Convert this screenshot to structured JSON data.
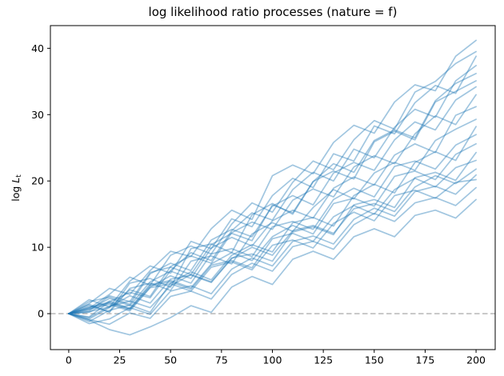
{
  "chart_data": {
    "type": "line",
    "title": "log likelihood ratio processes (nature = f)",
    "xlabel": "",
    "ylabel": "log L_t",
    "ylabel_parts": {
      "prefix": "log",
      "variable": "L",
      "subscript": "t"
    },
    "x_ticks": [
      0,
      25,
      50,
      75,
      100,
      125,
      150,
      175,
      200
    ],
    "y_ticks": [
      0,
      10,
      20,
      30,
      40
    ],
    "xlim": [
      -9,
      209.4
    ],
    "ylim": [
      -5.42,
      43.42
    ],
    "grid": false,
    "legend": false,
    "line_color": "#1f77b4",
    "line_alpha": 0.42,
    "reference_line": {
      "y": 0,
      "style": "dashed",
      "color": "#b0b0b0"
    },
    "x": [
      0,
      10,
      20,
      30,
      40,
      50,
      60,
      70,
      80,
      90,
      100,
      110,
      120,
      130,
      140,
      150,
      160,
      170,
      180,
      190,
      200
    ],
    "series": [
      {
        "name": "llr-path-1",
        "values": [
          0,
          1.5,
          3.8,
          2.9,
          6.5,
          9.4,
          8.6,
          12.8,
          15.6,
          14.2,
          20.8,
          22.4,
          21.1,
          25.8,
          28.4,
          27.2,
          31.9,
          34.5,
          33.6,
          38.8,
          41.2
        ]
      },
      {
        "name": "llr-path-2",
        "values": [
          0,
          0.8,
          2.9,
          5.5,
          4.3,
          8.8,
          10.2,
          9.0,
          13.5,
          16.7,
          15.3,
          19.8,
          23.0,
          21.7,
          26.2,
          29.1,
          27.8,
          33.4,
          35.0,
          37.7,
          39.5
        ]
      },
      {
        "name": "llr-path-3",
        "values": [
          0,
          2.1,
          1.0,
          4.9,
          7.2,
          6.1,
          10.9,
          9.8,
          14.3,
          13.1,
          17.8,
          20.4,
          19.0,
          24.1,
          23.0,
          28.3,
          27.1,
          31.8,
          34.4,
          33.2,
          38.8
        ]
      },
      {
        "name": "llr-path-4",
        "values": [
          0,
          -0.5,
          1.8,
          3.2,
          2.4,
          6.5,
          9.2,
          8.0,
          12.5,
          15.2,
          14.1,
          18.7,
          21.3,
          20.0,
          24.8,
          23.5,
          28.1,
          30.8,
          29.6,
          35.1,
          37.4
        ]
      },
      {
        "name": "llr-path-5",
        "values": [
          0,
          1.2,
          0.3,
          4.6,
          5.3,
          4.0,
          9.8,
          10.5,
          9.2,
          14.9,
          16.6,
          15.0,
          19.9,
          22.6,
          21.3,
          26.1,
          27.7,
          26.5,
          32.1,
          34.7,
          36.2
        ]
      },
      {
        "name": "llr-path-6",
        "values": [
          0,
          0.4,
          2.7,
          1.8,
          6.2,
          7.0,
          5.9,
          10.4,
          12.1,
          11.0,
          16.4,
          15.2,
          19.9,
          21.5,
          20.3,
          25.9,
          27.5,
          26.2,
          31.9,
          33.5,
          35.1
        ]
      },
      {
        "name": "llr-path-7",
        "values": [
          0,
          1.8,
          2.5,
          1.4,
          6.0,
          7.6,
          6.5,
          11.1,
          12.7,
          11.6,
          16.2,
          17.8,
          16.4,
          21.2,
          22.8,
          21.6,
          26.2,
          28.9,
          27.7,
          32.2,
          34.2
        ]
      },
      {
        "name": "llr-path-8",
        "values": [
          0,
          -0.8,
          0.9,
          3.6,
          2.6,
          7.1,
          8.7,
          7.6,
          12.2,
          13.8,
          12.7,
          17.1,
          18.8,
          17.6,
          22.1,
          23.8,
          22.6,
          27.1,
          29.8,
          28.5,
          33.0
        ]
      },
      {
        "name": "llr-path-9",
        "values": [
          0,
          0.6,
          2.3,
          1.2,
          4.8,
          6.4,
          5.3,
          9.9,
          11.5,
          10.2,
          14.0,
          15.6,
          14.4,
          18.9,
          20.6,
          19.4,
          23.9,
          25.6,
          24.3,
          29.9,
          31.2
        ]
      },
      {
        "name": "llr-path-10",
        "values": [
          0,
          1.4,
          0.2,
          3.8,
          4.6,
          3.5,
          7.9,
          8.7,
          7.5,
          12.0,
          13.7,
          12.4,
          16.0,
          18.7,
          17.3,
          21.2,
          22.8,
          21.6,
          26.1,
          27.8,
          29.3
        ]
      },
      {
        "name": "llr-path-11",
        "values": [
          0,
          -1.2,
          0.5,
          1.3,
          0.2,
          4.6,
          6.3,
          5.1,
          8.8,
          10.4,
          9.3,
          13.7,
          14.5,
          13.2,
          17.8,
          19.5,
          18.2,
          22.8,
          24.4,
          23.1,
          28.2
        ]
      },
      {
        "name": "llr-path-12",
        "values": [
          0,
          0.9,
          1.6,
          0.6,
          4.0,
          5.7,
          4.6,
          9.0,
          9.8,
          8.6,
          13.1,
          13.9,
          12.7,
          17.2,
          18.9,
          17.6,
          22.2,
          23.0,
          21.8,
          25.4,
          27.0
        ]
      },
      {
        "name": "llr-path-13",
        "values": [
          0,
          0.2,
          1.9,
          0.8,
          4.4,
          5.0,
          3.9,
          7.5,
          9.2,
          8.0,
          11.6,
          13.3,
          12.0,
          16.6,
          17.4,
          16.2,
          20.7,
          21.5,
          20.2,
          24.0,
          25.6
        ]
      },
      {
        "name": "llr-path-14",
        "values": [
          0,
          -0.6,
          1.1,
          1.9,
          0.9,
          4.2,
          5.9,
          4.8,
          8.4,
          9.0,
          7.9,
          12.3,
          13.1,
          11.9,
          16.4,
          17.2,
          16.0,
          20.5,
          21.3,
          20.1,
          24.3
        ]
      },
      {
        "name": "llr-path-15",
        "values": [
          0,
          1.0,
          1.7,
          0.7,
          4.2,
          4.8,
          3.7,
          7.3,
          8.0,
          6.9,
          11.3,
          12.1,
          10.9,
          14.6,
          16.3,
          15.0,
          18.7,
          20.4,
          19.1,
          22.0,
          23.1
        ]
      },
      {
        "name": "llr-path-16",
        "values": [
          0,
          0.3,
          1.0,
          2.7,
          1.6,
          5.2,
          5.8,
          4.7,
          8.3,
          10.0,
          8.8,
          12.5,
          13.3,
          12.1,
          15.8,
          16.6,
          15.4,
          19.1,
          20.8,
          19.6,
          21.8
        ]
      },
      {
        "name": "llr-path-17",
        "values": [
          0,
          -1.5,
          -0.8,
          0.9,
          -0.1,
          3.4,
          4.2,
          3.0,
          6.7,
          8.4,
          7.2,
          10.9,
          11.7,
          10.5,
          14.2,
          15.9,
          14.7,
          18.4,
          19.2,
          18.0,
          20.9
        ]
      },
      {
        "name": "llr-path-18",
        "values": [
          0,
          0.7,
          1.4,
          0.4,
          3.9,
          4.5,
          3.4,
          7.0,
          7.8,
          6.6,
          10.3,
          11.1,
          9.9,
          13.6,
          15.3,
          14.0,
          17.8,
          18.6,
          17.4,
          19.8,
          20.2
        ]
      },
      {
        "name": "llr-path-19",
        "values": [
          0,
          -0.9,
          -1.6,
          0.1,
          -0.7,
          2.6,
          3.4,
          2.2,
          5.9,
          7.6,
          6.4,
          10.1,
          10.9,
          9.7,
          13.4,
          15.1,
          13.9,
          16.7,
          17.5,
          16.3,
          19.0
        ]
      },
      {
        "name": "llr-path-20",
        "values": [
          0,
          -1.0,
          -2.4,
          -3.2,
          -2.0,
          -0.6,
          1.2,
          0.2,
          4.0,
          5.6,
          4.4,
          8.2,
          9.4,
          8.2,
          11.6,
          12.8,
          11.6,
          14.8,
          15.6,
          14.4,
          17.2
        ]
      }
    ]
  }
}
